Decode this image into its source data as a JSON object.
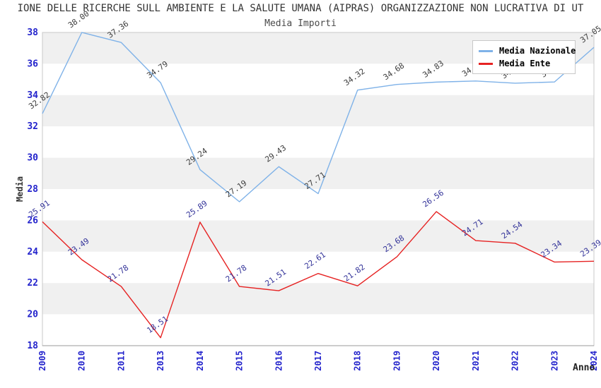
{
  "chart_data": {
    "type": "line",
    "title": "IONE DELLE RICERCHE SULL AMBIENTE E LA SALUTE UMANA (AIPRAS) ORGANIZZAZIONE NON LUCRATIVA DI UT",
    "subtitle": "Media Importi",
    "xlabel": "Anno",
    "ylabel": "Media",
    "ylim": [
      18,
      38
    ],
    "ytick_step": 2,
    "grid": "alternating horizontal bands",
    "legend_position": "top-right",
    "categories": [
      "2009",
      "2010",
      "2011",
      "2013",
      "2014",
      "2015",
      "2016",
      "2017",
      "2018",
      "2019",
      "2020",
      "2021",
      "2022",
      "2023",
      "2024"
    ],
    "series": [
      {
        "name": "Media Nazionale",
        "color": "#7FB2E8",
        "label_color": "#3C3C3C",
        "values": [
          32.82,
          38.0,
          37.36,
          34.79,
          29.24,
          27.19,
          29.43,
          27.71,
          34.32,
          34.68,
          34.83,
          34.9,
          34.76,
          34.84,
          37.05
        ],
        "labels": [
          "32.82",
          "38.00",
          "37.36",
          "34.79",
          "29.24",
          "27.19",
          "29.43",
          "27.71",
          "34.32",
          "34.68",
          "34.83",
          "34.90",
          "34.76",
          "34.84",
          "37.05"
        ]
      },
      {
        "name": "Media Ente",
        "color": "#E62222",
        "label_color": "#333399",
        "values": [
          25.91,
          23.49,
          21.78,
          18.51,
          25.89,
          21.78,
          21.51,
          22.61,
          21.82,
          23.68,
          26.56,
          24.71,
          24.54,
          23.34,
          23.39
        ],
        "labels": [
          "25.91",
          "23.49",
          "21.78",
          "18.51",
          "25.89",
          "21.78",
          "21.51",
          "22.61",
          "21.82",
          "23.68",
          "26.56",
          "24.71",
          "24.54",
          "23.34",
          "23.39"
        ]
      }
    ],
    "colors": {
      "tick_label": "#2424CC",
      "band_gray": "#F0F0F0",
      "plot_border": "#C8C8C8",
      "axis_line": "#9A9A9A",
      "title_text": "#333333",
      "subtitle_text": "#4A4A4A"
    }
  }
}
